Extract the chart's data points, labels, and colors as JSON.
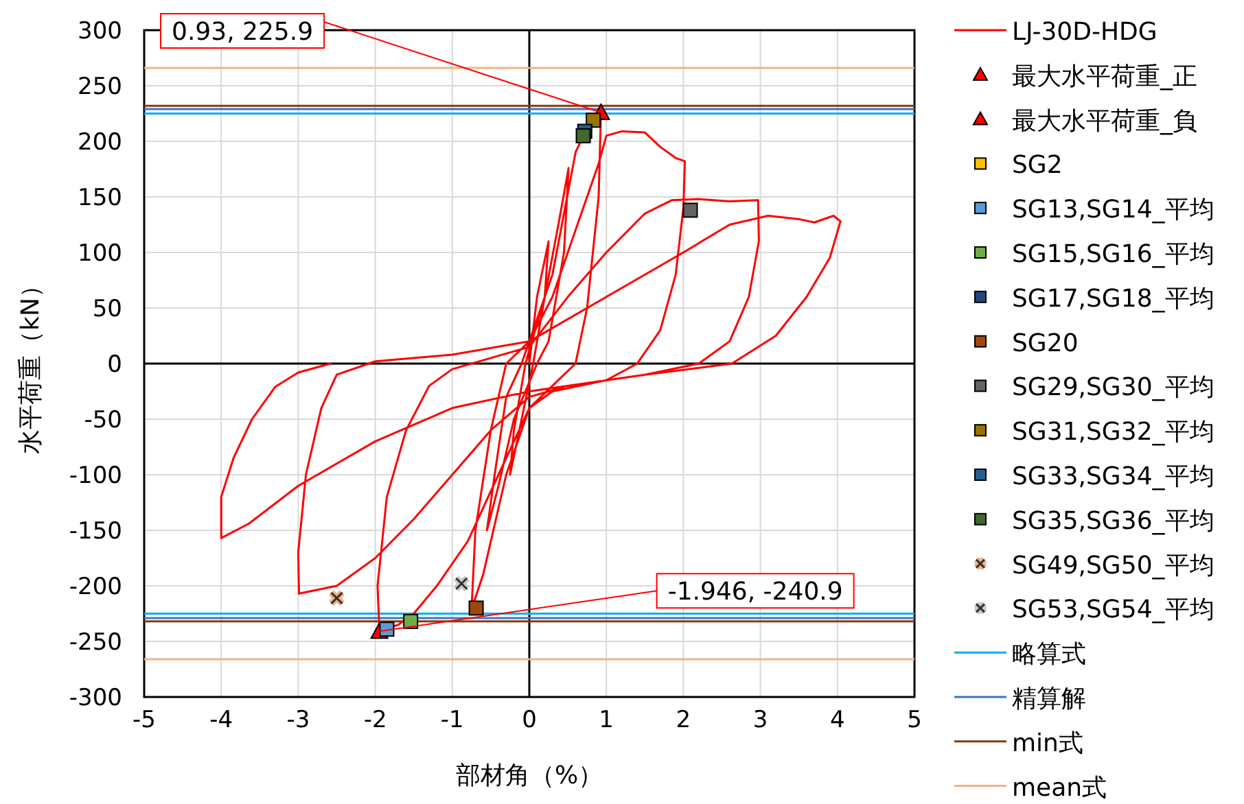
{
  "chart_data": {
    "type": "line",
    "xlabel": "部材角（%）",
    "ylabel": "水平荷重（kN）",
    "xlim": [
      -5,
      5
    ],
    "xticks": [
      -5,
      -4,
      -3,
      -2,
      -1,
      0,
      1,
      2,
      3,
      4,
      5
    ],
    "ylim": [
      -300,
      300
    ],
    "yticks": [
      -300,
      -250,
      -200,
      -150,
      -100,
      -50,
      0,
      50,
      100,
      150,
      200,
      250,
      300
    ],
    "grid": true,
    "legend": "right",
    "annotations": [
      {
        "text": "0.93, 225.9",
        "x": 0.93,
        "y": 225.9
      },
      {
        "text": "-1.946, -240.9",
        "x": -1.946,
        "y": -240.9
      }
    ],
    "series": [
      {
        "name": "LJ-30D-HDG",
        "color": "#ff0000",
        "marker": "none",
        "x": [
          0,
          0.1,
          0.25,
          0.2,
          0.05,
          -0.1,
          -0.25,
          -0.2,
          -0.05,
          0.2,
          0.38,
          0.51,
          0.45,
          0.25,
          0.1,
          -0.2,
          -0.4,
          -0.55,
          -0.45,
          -0.3,
          -0.1,
          0.3,
          0.6,
          0.7,
          0.85,
          0.93,
          0.9,
          0.75,
          0.6,
          0.3,
          0,
          -0.3,
          -0.6,
          -0.75,
          -0.7,
          -0.5,
          -0.3,
          0,
          0.3,
          0.6,
          0.9,
          1.0,
          1.2,
          1.5,
          1.7,
          1.9,
          2.02,
          2.0,
          1.9,
          1.7,
          1.4,
          1.0,
          0.3,
          0,
          -0.4,
          -0.8,
          -1.2,
          -1.5,
          -1.7,
          -1.946,
          -1.97,
          -1.85,
          -1.6,
          -1.3,
          -1.0,
          -0.5,
          0,
          0.5,
          1.0,
          1.5,
          1.85,
          2.2,
          2.6,
          2.97,
          2.98,
          2.85,
          2.6,
          2.2,
          1.5,
          0.5,
          0,
          -0.5,
          -1.0,
          -1.5,
          -2.0,
          -2.5,
          -2.99,
          -3.0,
          -2.9,
          -2.7,
          -2.5,
          -2.0,
          -1.0,
          0,
          1.0,
          2.0,
          2.6,
          3.1,
          3.5,
          3.7,
          3.95,
          4.04,
          3.9,
          3.6,
          3.2,
          2.63,
          1.5,
          0,
          -1.0,
          -2.0,
          -3.0,
          -3.64,
          -4.0,
          -4.0,
          -3.84,
          -3.6,
          -3.3,
          -3.0,
          -2.58
        ],
        "values": [
          0,
          60,
          110,
          60,
          0,
          -50,
          -100,
          -60,
          0,
          60,
          126,
          176,
          100,
          20,
          0,
          -50,
          -110,
          -150,
          -100,
          -30,
          0,
          80,
          190,
          205,
          220,
          225.9,
          150,
          50,
          0,
          -20,
          -40,
          -100,
          -190,
          -221,
          -150,
          -60,
          0,
          20,
          60,
          120,
          180,
          205,
          209,
          208,
          195,
          185,
          182,
          140,
          80,
          30,
          0,
          -15,
          -25,
          -40,
          -100,
          -160,
          -200,
          -225,
          -235,
          -240.9,
          -200,
          -120,
          -60,
          -20,
          -5,
          5,
          15,
          60,
          100,
          135,
          147,
          148,
          146,
          147,
          110,
          60,
          20,
          0,
          -10,
          -20,
          -30,
          -60,
          -100,
          -140,
          -175,
          -200,
          -207,
          -170,
          -100,
          -40,
          -10,
          2,
          8,
          20,
          60,
          100,
          125,
          133,
          130,
          127,
          133,
          128,
          95,
          60,
          25,
          0,
          -10,
          -25,
          -40,
          -70,
          -110,
          -144,
          -157,
          -120,
          -85,
          -50,
          -21,
          -8,
          0
        ]
      },
      {
        "name": "最大水平荷重_正",
        "type": "scatter",
        "marker": "triangle",
        "color": "#ff0000",
        "x": [
          0.93
        ],
        "values": [
          225.9
        ]
      },
      {
        "name": "最大水平荷重_負",
        "type": "scatter",
        "marker": "triangle",
        "color": "#ff0000",
        "x": [
          -1.946
        ],
        "values": [
          -240.9
        ]
      },
      {
        "name": "SG2",
        "type": "scatter",
        "marker": "square",
        "color": "#ffc000"
      },
      {
        "name": "SG13,SG14_平均",
        "type": "scatter",
        "marker": "square",
        "color": "#5b9bd5",
        "x": [
          -1.85
        ],
        "values": [
          -239
        ]
      },
      {
        "name": "SG15,SG16_平均",
        "type": "scatter",
        "marker": "square",
        "color": "#70ad47",
        "x": [
          -1.54
        ],
        "values": [
          -232
        ]
      },
      {
        "name": "SG17,SG18_平均",
        "type": "scatter",
        "marker": "square",
        "color": "#264478"
      },
      {
        "name": "SG20",
        "type": "scatter",
        "marker": "square",
        "color": "#9e480e",
        "x": [
          -0.69
        ],
        "values": [
          -220
        ]
      },
      {
        "name": "SG29,SG30_平均",
        "type": "scatter",
        "marker": "square",
        "color": "#636363",
        "x": [
          2.09
        ],
        "values": [
          138
        ]
      },
      {
        "name": "SG31,SG32_平均",
        "type": "scatter",
        "marker": "square",
        "color": "#997300",
        "x": [
          0.83
        ],
        "values": [
          219
        ]
      },
      {
        "name": "SG33,SG34_平均",
        "type": "scatter",
        "marker": "square",
        "color": "#255e91",
        "x": [
          0.72
        ],
        "values": [
          209
        ]
      },
      {
        "name": "SG35,SG36_平均",
        "type": "scatter",
        "marker": "square",
        "color": "#43682b",
        "x": [
          0.7
        ],
        "values": [
          205
        ]
      },
      {
        "name": "SG49,SG50_平均",
        "type": "scatter",
        "marker": "cross",
        "color": "#f4b183",
        "x": [
          -2.5
        ],
        "values": [
          -211
        ]
      },
      {
        "name": "SG53,SG54_平均",
        "type": "scatter",
        "marker": "cross",
        "color": "#c9c9c9",
        "x": [
          -0.88
        ],
        "values": [
          -198
        ]
      }
    ],
    "ref_lines": [
      {
        "axis": "y",
        "value": 225,
        "label": "略算式",
        "color": "#00b0f0"
      },
      {
        "axis": "y",
        "value": -225,
        "color": "#00b0f0"
      },
      {
        "axis": "y",
        "value": 229,
        "label": "精算解",
        "color": "#4472c4"
      },
      {
        "axis": "y",
        "value": -229,
        "color": "#4472c4"
      },
      {
        "axis": "y",
        "value": 232,
        "label": "min式",
        "color": "#843c0c"
      },
      {
        "axis": "y",
        "value": -232,
        "color": "#843c0c"
      },
      {
        "axis": "y",
        "value": 266,
        "label": "mean式",
        "color": "#f4b183"
      },
      {
        "axis": "y",
        "value": -266,
        "color": "#f4b183"
      }
    ]
  }
}
